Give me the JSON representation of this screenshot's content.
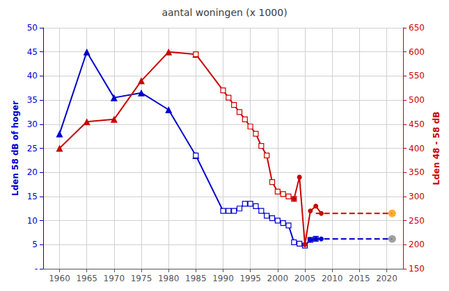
{
  "chart_data": {
    "type": "line",
    "title": "aantal woningen (x 1000)",
    "ylabel": "Lden 58 dB of hoger",
    "y2label": "Lden 48 - 58 dB",
    "xlim": [
      1957,
      2023
    ],
    "xticks": [
      1960,
      1965,
      1970,
      1975,
      1980,
      1985,
      1990,
      1995,
      2000,
      2005,
      2010,
      2015,
      2020
    ],
    "ylim": [
      0,
      50
    ],
    "yticks": [
      {
        "value": 0,
        "label": "-"
      },
      5,
      10,
      15,
      20,
      25,
      30,
      35,
      40,
      45,
      50
    ],
    "y2lim": [
      150,
      650
    ],
    "y2ticks": [
      150,
      200,
      250,
      300,
      350,
      400,
      450,
      500,
      550,
      600,
      650
    ],
    "grid": true,
    "series": [
      {
        "type": "line",
        "axis": "y",
        "color": "#0000cc",
        "marker": "triangle",
        "line_style": "solid",
        "x": [
          1960,
          1965,
          1970,
          1975,
          1980,
          1985
        ],
        "values": [
          28,
          45,
          35.5,
          36.5,
          33,
          23.5
        ]
      },
      {
        "type": "line",
        "axis": "y",
        "color": "#0000cc",
        "marker": "square",
        "line_style": "solid",
        "x": [
          1985,
          1990,
          1991,
          1992,
          1993,
          1994,
          1995,
          1996,
          1997,
          1998,
          1999,
          2000,
          2001,
          2002,
          2003,
          2004,
          2005,
          2006,
          2007
        ],
        "values": [
          23.5,
          12.0,
          12.0,
          12.0,
          12.5,
          13.5,
          13.5,
          13.0,
          12.0,
          11.0,
          10.5,
          10.0,
          9.5,
          9.0,
          5.5,
          5.2,
          4.8,
          6.0,
          6.2
        ]
      },
      {
        "type": "line",
        "axis": "y",
        "color": "#0000cc",
        "marker": "circle",
        "line_style": "solid",
        "x": [
          2006,
          2007,
          2008
        ],
        "values": [
          6.0,
          6.2,
          6.2
        ]
      },
      {
        "type": "line",
        "axis": "y",
        "color": "#0000cc",
        "marker": "none",
        "line_style": "dashed",
        "x": [
          2007,
          2021
        ],
        "values": [
          6.2,
          6.2
        ]
      },
      {
        "type": "scatter",
        "axis": "y",
        "color": "#888888",
        "marker": "circle",
        "x": [
          2021
        ],
        "values": [
          6.2
        ]
      },
      {
        "type": "line",
        "axis": "y2",
        "color": "#cc0000",
        "marker": "triangle",
        "line_style": "solid",
        "x": [
          1960,
          1965,
          1970,
          1975,
          1980,
          1985
        ],
        "values": [
          400,
          455,
          460,
          540,
          600,
          595
        ]
      },
      {
        "type": "line",
        "axis": "y2",
        "color": "#cc0000",
        "marker": "square",
        "line_style": "solid",
        "x": [
          1985,
          1990,
          1991,
          1992,
          1993,
          1994,
          1995,
          1996,
          1997,
          1998,
          1999,
          2000,
          2001,
          2002,
          2003
        ],
        "values": [
          595,
          520,
          505,
          490,
          475,
          460,
          445,
          430,
          405,
          385,
          330,
          310,
          305,
          300,
          295
        ]
      },
      {
        "type": "line",
        "axis": "y2",
        "color": "#cc0000",
        "marker": "circle",
        "line_style": "solid",
        "x": [
          2003,
          2004,
          2005,
          2006,
          2007,
          2008
        ],
        "values": [
          295,
          340,
          200,
          270,
          280,
          265
        ]
      },
      {
        "type": "line",
        "axis": "y2",
        "color": "#cc0000",
        "marker": "none",
        "line_style": "dashed",
        "x": [
          2007,
          2021
        ],
        "values": [
          265,
          265
        ]
      },
      {
        "type": "scatter",
        "axis": "y2",
        "color": "#ff9900",
        "marker": "circle",
        "x": [
          2021
        ],
        "values": [
          265
        ]
      }
    ]
  }
}
